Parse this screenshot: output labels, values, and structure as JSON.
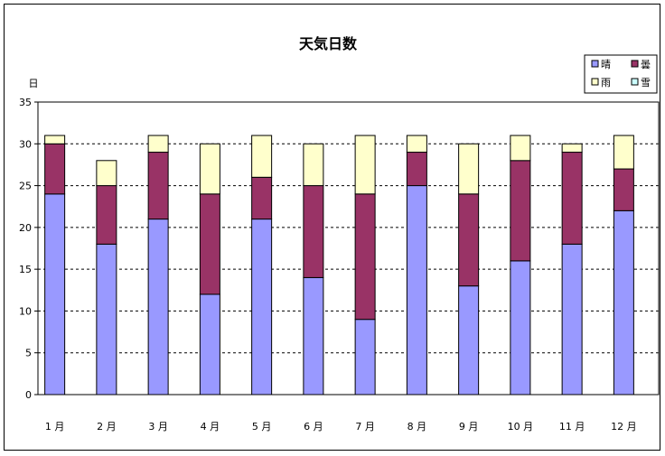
{
  "chart_data": {
    "type": "bar",
    "stacked": true,
    "title": "天気日数",
    "ylabel": "日",
    "xlabel": "",
    "ylim": [
      0,
      35
    ],
    "yticks": [
      0,
      5,
      10,
      15,
      20,
      25,
      30,
      35
    ],
    "grid": true,
    "legend_position": "top-right",
    "categories": [
      "1 月",
      "2 月",
      "3 月",
      "4 月",
      "5 月",
      "6 月",
      "7 月",
      "8 月",
      "9 月",
      "10 月",
      "11 月",
      "12 月"
    ],
    "series": [
      {
        "name": "晴",
        "color": "#9999ff",
        "values": [
          24,
          18,
          21,
          12,
          21,
          14,
          9,
          25,
          13,
          16,
          18,
          22
        ]
      },
      {
        "name": "曇",
        "color": "#993366",
        "values": [
          6,
          7,
          8,
          12,
          5,
          11,
          15,
          4,
          11,
          12,
          11,
          5
        ]
      },
      {
        "name": "雨",
        "color": "#ffffcc",
        "values": [
          1,
          3,
          2,
          6,
          5,
          5,
          7,
          2,
          6,
          3,
          1,
          4
        ]
      },
      {
        "name": "雪",
        "color": "#ccffff",
        "values": [
          0,
          0,
          0,
          0,
          0,
          0,
          0,
          0,
          0,
          0,
          0,
          0
        ]
      }
    ]
  }
}
